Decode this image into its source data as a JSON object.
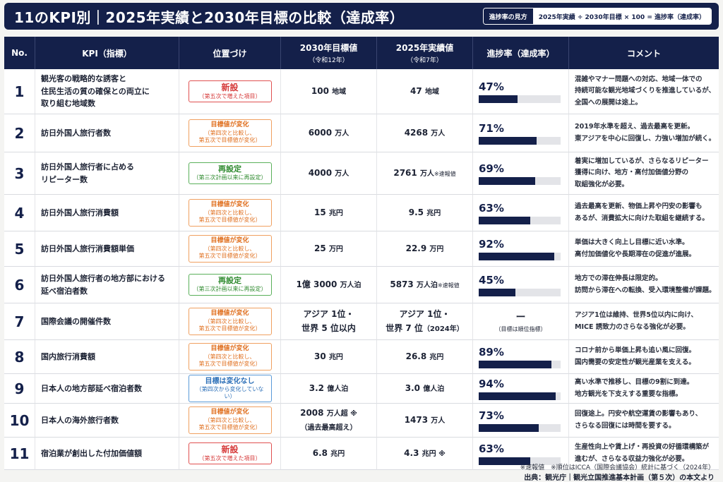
{
  "header": {
    "title": "11のKPI別｜2025年実績と2030年目標の比較（達成率）",
    "formula_tag": "進捗率の見方",
    "formula_text": "2025年実績 ÷ 2030年目標 × 100 = 進捗率（達成率）"
  },
  "columns": {
    "no": "No.",
    "kpi": "KPI（指標）",
    "position": "位置づけ",
    "target": "2030年目標値",
    "target_sub": "（令和12年）",
    "actual": "2025年実績値",
    "actual_sub": "（令和7年）",
    "progress": "進捗率（達成率）",
    "comment": "コメント"
  },
  "badges": {
    "new": {
      "main": "新設",
      "sub": "（第五次で増えた項目）"
    },
    "changed": {
      "l1": "目標値が変化",
      "l2": "（第四次と比較し、",
      "l3": "第五次で目標値が変化）"
    },
    "reset": {
      "main": "再設定",
      "sub": "（第三次計画以来に再設定）"
    },
    "same": {
      "main": "目標は変化なし",
      "sub": "（第四次から変化していない）"
    }
  },
  "rows": [
    {
      "no": "1",
      "kpi1": "観光客の戦略的な誘客と",
      "kpi2": "住民生活の質の確保との両立に",
      "kpi3": "取り組む地域数",
      "badge": "new",
      "target": "100",
      "target_unit": "地域",
      "actual": "47",
      "actual_unit": "地域",
      "pct_text": "47%",
      "pct": 47,
      "c1": "混雑やマナー問題への対応、地域一体での",
      "c2": "持続可能な観光地域づくりを推進しているが、",
      "c3": "全国への展開は途上。"
    },
    {
      "no": "2",
      "kpi1": "訪日外国人旅行者数",
      "badge": "changed",
      "target": "6000",
      "target_unit": "万人",
      "actual": "4268",
      "actual_unit": "万人",
      "pct_text": "71%",
      "pct": 71,
      "c1": "2019年水準を超え、過去最高を更新。",
      "c2": "東アジアを中心に回復し、力強い増加が続く。"
    },
    {
      "no": "3",
      "kpi1": "訪日外国人旅行者に占める",
      "kpi2": "リピーター数",
      "badge": "reset",
      "target": "4000",
      "target_unit": "万人",
      "actual": "2761",
      "actual_unit": "万人",
      "actual_note": "※速報値",
      "pct_text": "69%",
      "pct": 69,
      "c1": "着実に増加しているが、さらなるリピーター",
      "c2": "獲得に向け、地方・高付加価値分野の",
      "c3": "取組強化が必要。"
    },
    {
      "no": "4",
      "kpi1": "訪日外国人旅行消費額",
      "badge": "changed",
      "target": "15",
      "target_unit": "兆円",
      "actual": "9.5",
      "actual_unit": "兆円",
      "pct_text": "63%",
      "pct": 63,
      "c1": "過去最高を更新、物価上昇や円安の影響も",
      "c2": "あるが、消費拡大に向けた取組を継続する。"
    },
    {
      "no": "5",
      "kpi1": "訪日外国人旅行消費額単価",
      "badge": "changed",
      "target": "25",
      "target_unit": "万円",
      "actual": "22.9",
      "actual_unit": "万円",
      "pct_text": "92%",
      "pct": 92,
      "c1": "単価は大きく向上し目標に近い水準。",
      "c2": "高付加価値化や長期滞在の促進が進展。"
    },
    {
      "no": "6",
      "kpi1": "訪日外国人旅行者の地方部における",
      "kpi2": "延べ宿泊者数",
      "badge": "reset",
      "target": "1億 3000",
      "target_unit": "万人泊",
      "actual": "5873",
      "actual_unit": "万人泊",
      "actual_note": "※速報値",
      "pct_text": "45%",
      "pct": 45,
      "c1": "地方での滞在伸長は限定的。",
      "c2": "訪問から滞在への転換、受入環境整備が課題。"
    },
    {
      "no": "7",
      "kpi1": "国際会議の開催件数",
      "badge": "changed",
      "target_l1": "アジア 1位・",
      "target_l2": "世界 5 位以内",
      "actual_l1": "アジア 1位・",
      "actual_l2": "世界 7 位",
      "actual_l2_note": "（2024年）",
      "dash": "ー",
      "dash_note": "（目標は順位指標）",
      "c1": "アジア1位は維持、世界5位以内に向け、",
      "c2": "MICE 誘致力のさらなる強化が必要。"
    },
    {
      "no": "8",
      "kpi1": "国内旅行消費額",
      "badge": "changed",
      "target": "30",
      "target_unit": "兆円",
      "actual": "26.8",
      "actual_unit": "兆円",
      "pct_text": "89%",
      "pct": 89,
      "c1": "コロナ前から単価上昇も追い風に回復。",
      "c2": "国内需要の安定性が観光産業を支える。"
    },
    {
      "no": "9",
      "kpi1": "日本人の地方部延べ宿泊者数",
      "badge": "same",
      "target": "3.2",
      "target_unit": "億人泊",
      "actual": "3.0",
      "actual_unit": "億人泊",
      "pct_text": "94%",
      "pct": 94,
      "c1": "高い水準で推移し、目標の9割に到達。",
      "c2": "地方観光を下支えする重要な指標。"
    },
    {
      "no": "10",
      "kpi1": "日本人の海外旅行者数",
      "badge": "changed",
      "target": "2008",
      "target_unit": "万人超 ※",
      "target_l2": "（過去最高超え）",
      "actual": "1473",
      "actual_unit": "万人",
      "pct_text": "73%",
      "pct": 73,
      "c1": "回復途上。円安や航空運賃の影響もあり、",
      "c2": "さらなる回復には時間を要する。"
    },
    {
      "no": "11",
      "kpi1": "宿泊業が創出した付加価値額",
      "badge": "new",
      "target": "6.8",
      "target_unit": "兆円",
      "actual": "4.3",
      "actual_unit": "兆円 ※",
      "pct_text": "63%",
      "pct": 63,
      "c1": "生産性向上や賃上げ・再投資の好循環構築が",
      "c2": "進むが、さらなる収益力強化が必要。"
    }
  ],
  "footnote": "※速報値　※順位はICCA（国際会議協会）統計に基づく（2024年）",
  "source": "出典：観光庁｜観光立国推進基本計画（第５次）の本文より",
  "colors": {
    "navy": "#14204a",
    "new": "#d63a3a",
    "changed": "#e07020",
    "reset": "#2e8a2e",
    "same": "#2d70b8"
  }
}
